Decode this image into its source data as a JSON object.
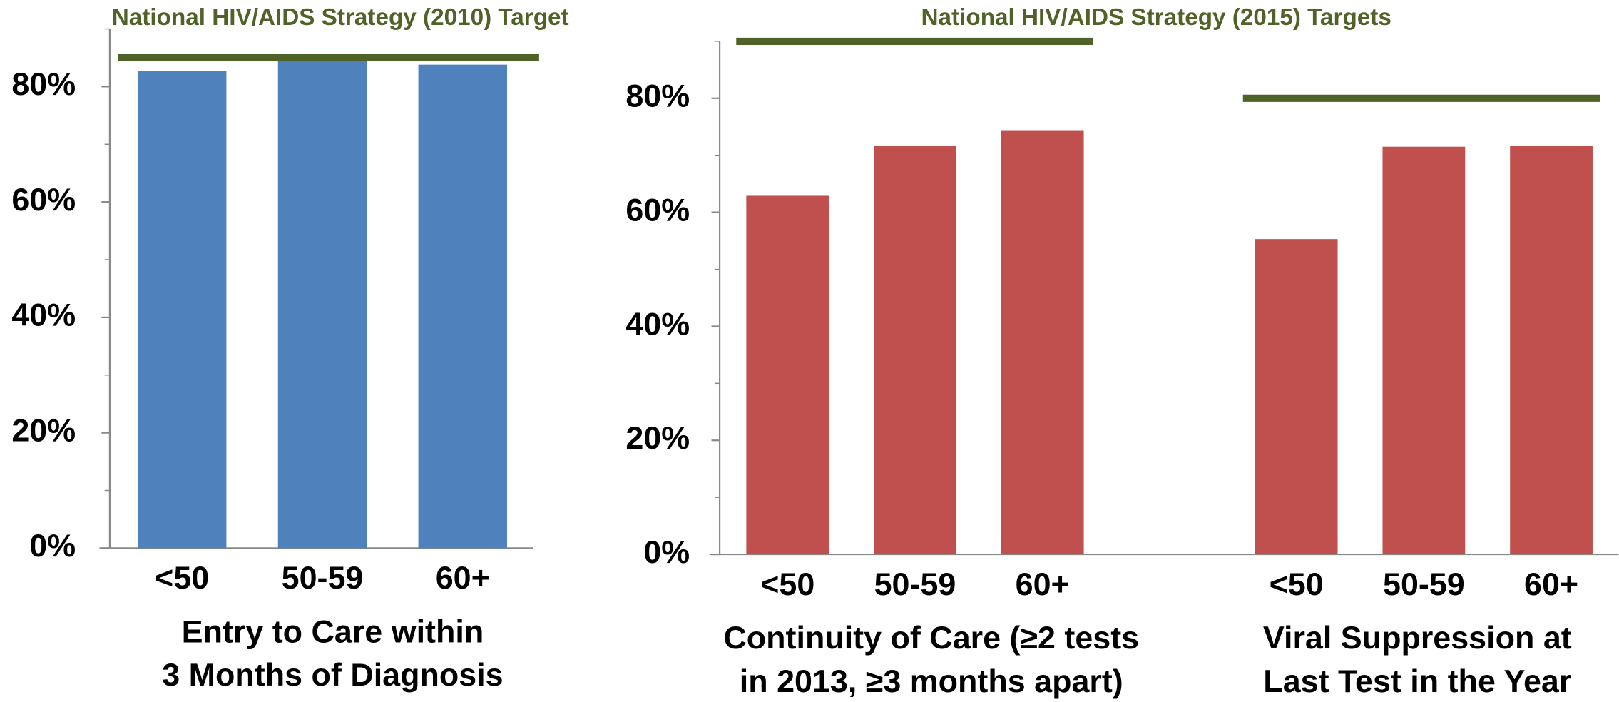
{
  "chart_data": [
    {
      "type": "bar",
      "title": "National HIV/AIDS Strategy (2010) Target",
      "color": "#4f81bd",
      "target_color": "#4f6228",
      "ylim": [
        0,
        90
      ],
      "yticks": [
        {
          "value": 0,
          "label": "0%"
        },
        {
          "value": 20,
          "label": "20%"
        },
        {
          "value": 40,
          "label": "40%"
        },
        {
          "value": 60,
          "label": "60%"
        },
        {
          "value": 80,
          "label": "80%"
        }
      ],
      "minor_yticks": [
        10,
        30,
        50,
        70,
        90
      ],
      "groups": [
        {
          "label": [
            "Entry to Care within",
            "3 Months of Diagnosis"
          ],
          "categories": [
            "<50",
            "50-59",
            "60+"
          ],
          "values": [
            82.7,
            84.8,
            83.8
          ],
          "target": 85
        }
      ]
    },
    {
      "type": "bar",
      "title": "National HIV/AIDS Strategy (2015) Targets",
      "color": "#c0504d",
      "target_color": "#4f6228",
      "ylim": [
        0,
        90
      ],
      "yticks": [
        {
          "value": 0,
          "label": "0%"
        },
        {
          "value": 20,
          "label": "20%"
        },
        {
          "value": 40,
          "label": "40%"
        },
        {
          "value": 60,
          "label": "60%"
        },
        {
          "value": 80,
          "label": "80%"
        }
      ],
      "minor_yticks": [
        10,
        30,
        50,
        70,
        90
      ],
      "groups": [
        {
          "label": [
            "Continuity of Care (≥2 tests",
            "in 2013, ≥3 months apart)"
          ],
          "categories": [
            "<50",
            "50-59",
            "60+"
          ],
          "values": [
            62.9,
            71.7,
            74.4
          ],
          "target": 90
        },
        {
          "label": [
            "Viral Suppression at",
            "Last Test in the Year"
          ],
          "categories": [
            "<50",
            "50-59",
            "60+"
          ],
          "values": [
            55.3,
            71.5,
            71.7
          ],
          "target": 80
        }
      ]
    }
  ]
}
